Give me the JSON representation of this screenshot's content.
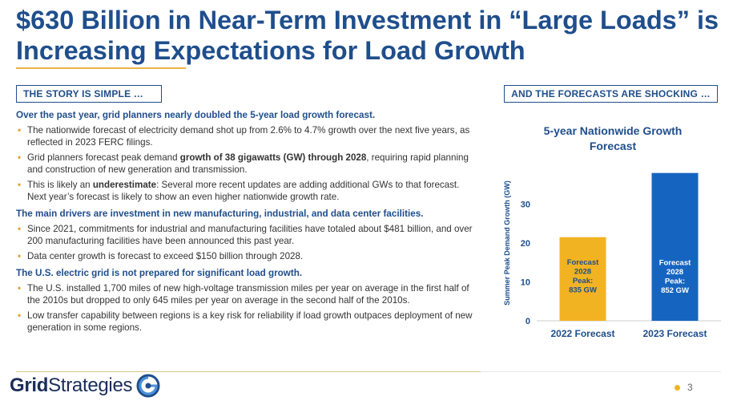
{
  "title": "$630 Billion in Near-Term Investment in “Large Loads” is Increasing Expectations for Load Growth",
  "left_heading": "THE STORY IS SIMPLE …",
  "right_heading": "AND THE FORECASTS ARE SHOCKING …",
  "sections": [
    {
      "heading": "Over the past year, grid planners nearly doubled the 5-year load growth forecast.",
      "bullets": [
        {
          "parts": [
            {
              "t": "The nationwide forecast of electricity demand shot up from 2.6% to 4.7% growth over the next five years, as reflected in 2023 FERC filings."
            }
          ]
        },
        {
          "parts": [
            {
              "t": "Grid planners forecast peak demand "
            },
            {
              "t": "growth of 38 gigawatts (GW) through 2028",
              "b": true
            },
            {
              "t": ", requiring rapid planning and construction of new generation and transmission."
            }
          ]
        },
        {
          "parts": [
            {
              "t": "This is likely an "
            },
            {
              "t": "underestimate",
              "b": true
            },
            {
              "t": ": Several more recent updates are adding additional GWs to that forecast. Next year’s forecast is likely to show an even higher nationwide growth rate."
            }
          ]
        }
      ]
    },
    {
      "heading": "The main drivers are investment in new manufacturing, industrial, and data center facilities.",
      "bullets": [
        {
          "parts": [
            {
              "t": "Since 2021, commitments for industrial and manufacturing facilities have totaled about $481 billion, and over 200 manufacturing facilities have been announced this past year."
            }
          ]
        },
        {
          "parts": [
            {
              "t": "Data center growth is forecast to exceed $150 billion through 2028."
            }
          ]
        }
      ]
    },
    {
      "heading": "The U.S. electric grid is not prepared for significant load growth.",
      "bullets": [
        {
          "parts": [
            {
              "t": "The U.S. installed 1,700 miles of new high-voltage transmission miles per year on average in the first half of the 2010s but dropped to only 645 miles per year on average in the second half of the 2010s."
            }
          ]
        },
        {
          "parts": [
            {
              "t": "Low transfer capability between regions is a key risk for reliability if load growth outpaces deployment of new generation in some regions."
            }
          ]
        }
      ]
    }
  ],
  "logo": {
    "bold": "Grid",
    "regular": "Strategies"
  },
  "page_number": "3",
  "chart_data": {
    "type": "bar",
    "title": "5-year Nationwide Growth Forecast",
    "categories": [
      "2022 Forecast",
      "2023 Forecast"
    ],
    "values": [
      21.5,
      38
    ],
    "ylabel": "Summer Peak Demand Growth (GW)",
    "ylim": [
      0,
      40
    ],
    "yticks": [
      0,
      10,
      20,
      30
    ],
    "bar_labels": [
      [
        "Forecast",
        "2028",
        "Peak:",
        "835 GW"
      ],
      [
        "Forecast",
        "2028",
        "Peak:",
        "852 GW"
      ]
    ],
    "colors": [
      "#f2b322",
      "#1565c0"
    ],
    "grid": false,
    "legend": "none"
  }
}
